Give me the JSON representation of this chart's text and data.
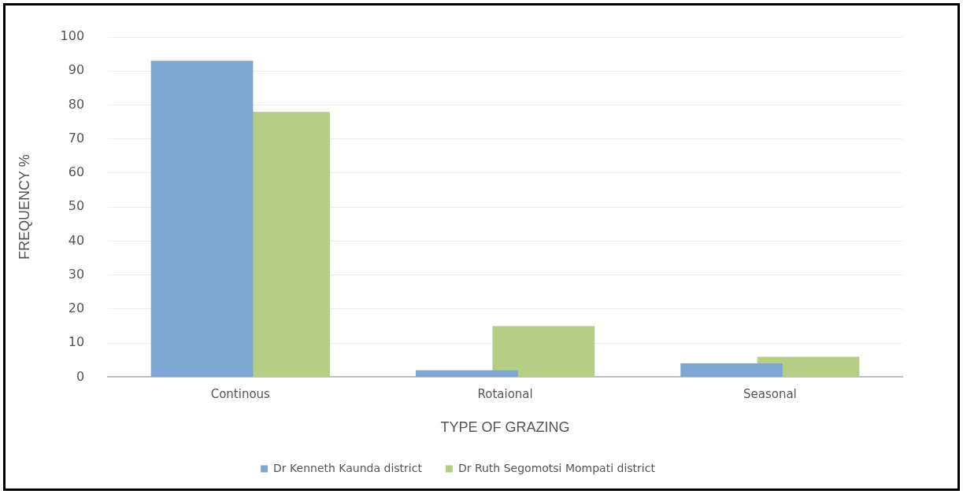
{
  "chart_data": {
    "type": "bar",
    "xlabel": "TYPE OF GRAZING",
    "ylabel": "FREQUENCY %",
    "categories": [
      "Continous",
      "Rotaional",
      "Seasonal"
    ],
    "series": [
      {
        "name": "Dr Kenneth Kaunda district",
        "color": "#7ea6d3",
        "values": [
          93,
          2,
          4
        ]
      },
      {
        "name": "Dr Ruth Segomotsi Mompati district",
        "color": "#b5cd85",
        "values": [
          78,
          15,
          6
        ]
      }
    ],
    "ylim": [
      0,
      100
    ],
    "yticks": [
      0,
      10,
      20,
      30,
      40,
      50,
      60,
      70,
      80,
      90,
      100
    ],
    "grid": "y",
    "legend": "bottom"
  }
}
